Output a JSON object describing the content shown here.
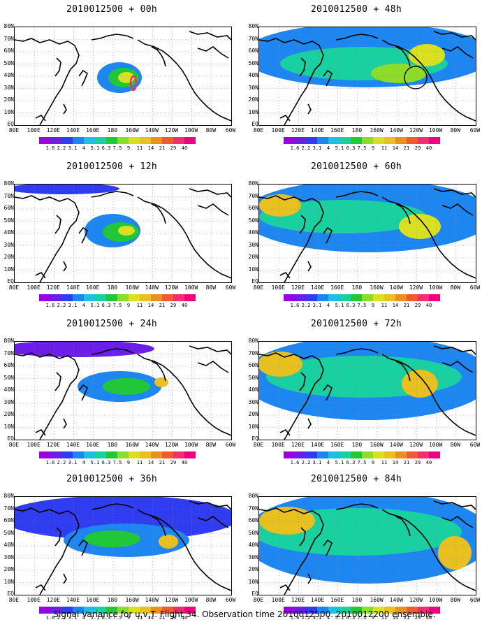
{
  "panels": [
    {
      "title": "2010012500 + 00h",
      "level": 0,
      "marker": "contour"
    },
    {
      "title": "2010012500 + 48h",
      "level": 4,
      "marker": "circle"
    },
    {
      "title": "2010012500 + 12h",
      "level": 1,
      "marker": "none"
    },
    {
      "title": "2010012500 + 60h",
      "level": 5,
      "marker": "none"
    },
    {
      "title": "2010012500 + 24h",
      "level": 2,
      "marker": "none"
    },
    {
      "title": "2010012500 + 72h",
      "level": 6,
      "marker": "none"
    },
    {
      "title": "2010012500 + 36h",
      "level": 3,
      "marker": "none"
    },
    {
      "title": "2010012500 + 84h",
      "level": 7,
      "marker": "none"
    }
  ],
  "lat_labels": [
    "80N",
    "70N",
    "60N",
    "50N",
    "40N",
    "30N",
    "20N",
    "10N",
    "EQ"
  ],
  "lon_labels": [
    "80E",
    "100E",
    "120E",
    "140E",
    "160E",
    "180",
    "160W",
    "140W",
    "120W",
    "100W",
    "80W",
    "60W"
  ],
  "colorbar": {
    "labels": [
      "1.6",
      "2.2",
      "3.1",
      "4",
      "5.1",
      "6.3",
      "7.5",
      "9",
      "11",
      "14",
      "21",
      "29",
      "40"
    ],
    "colors": [
      "#9b00e0",
      "#6a1ee6",
      "#2f3cf0",
      "#1e86f0",
      "#1cc0e0",
      "#18d0a0",
      "#20c838",
      "#8cdc28",
      "#d8e020",
      "#e8c020",
      "#e89020",
      "#f05a30",
      "#f0306e",
      "#f00080"
    ]
  },
  "footer": "Signal Variance for u,v,T. Flight 34. Observation time 2010012500. 2010012200 ensemble."
}
